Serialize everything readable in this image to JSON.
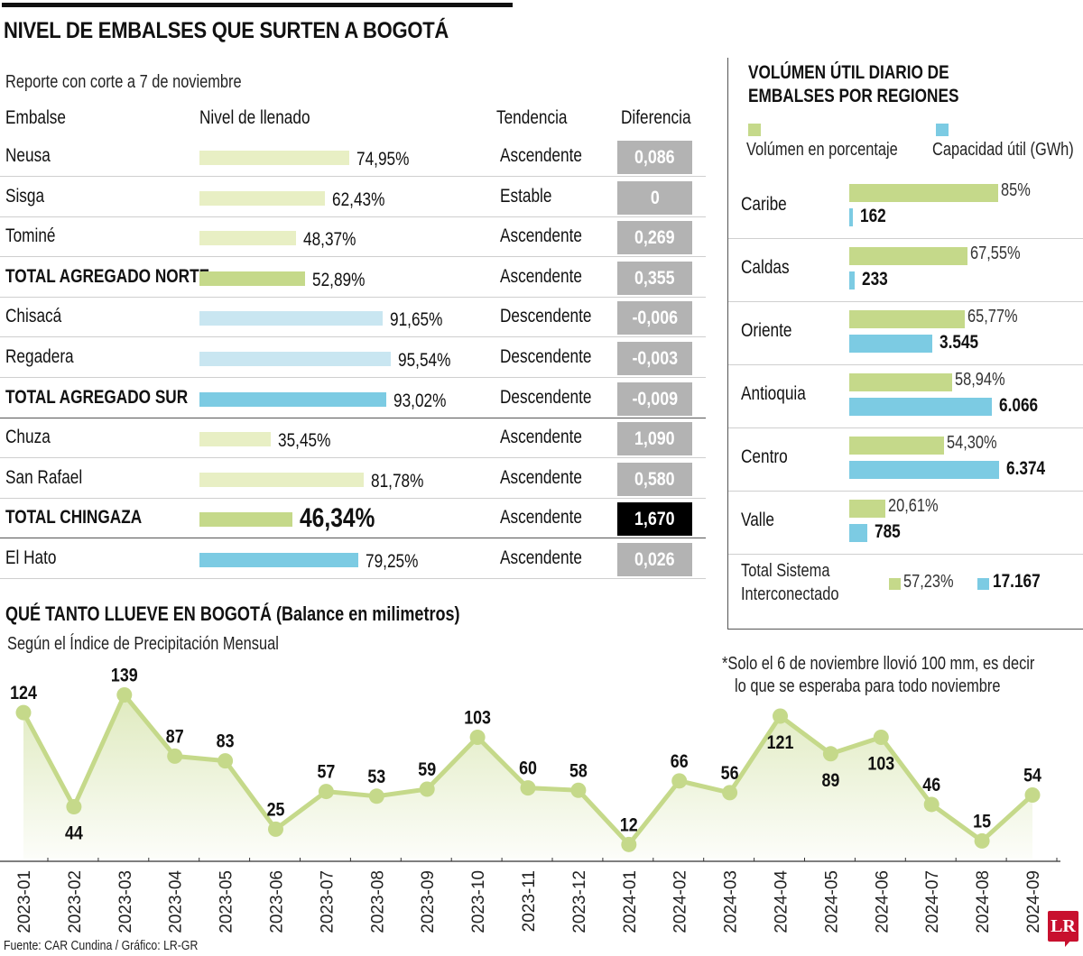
{
  "title": "NIVEL DE EMBALSES QUE SURTEN A BOGOTÁ",
  "report_note": "Reporte con corte a 7 de noviembre",
  "table": {
    "headers": {
      "embalse": "Embalse",
      "nivel": "Nivel de llenado",
      "tendencia": "Tendencia",
      "diferencia": "Diferencia"
    },
    "rows": [
      {
        "name": "Neusa",
        "level": 74.95,
        "level_label": "74,95%",
        "trend": "Ascendente",
        "diff": "0,086",
        "bold": false,
        "color": "#e8efc4",
        "highlight": false
      },
      {
        "name": "Sisga",
        "level": 62.43,
        "level_label": "62,43%",
        "trend": "Estable",
        "diff": "0",
        "bold": false,
        "color": "#e8efc4",
        "highlight": false
      },
      {
        "name": "Tominé",
        "level": 48.37,
        "level_label": "48,37%",
        "trend": "Ascendente",
        "diff": "0,269",
        "bold": false,
        "color": "#e8efc4",
        "highlight": false
      },
      {
        "name": "TOTAL AGREGADO NORTE",
        "level": 52.89,
        "level_label": "52,89%",
        "trend": "Ascendente",
        "diff": "0,355",
        "bold": true,
        "color": "#c5d98a",
        "highlight": false
      },
      {
        "name": "Chisacá",
        "level": 91.65,
        "level_label": "91,65%",
        "trend": "Descendente",
        "diff": "-0,006",
        "bold": false,
        "color": "#c9e6f1",
        "highlight": false
      },
      {
        "name": "Regadera",
        "level": 95.54,
        "level_label": "95,54%",
        "trend": "Descendente",
        "diff": "-0,003",
        "bold": false,
        "color": "#c9e6f1",
        "highlight": false
      },
      {
        "name": "TOTAL AGREGADO SUR",
        "level": 93.02,
        "level_label": "93,02%",
        "trend": "Descendente",
        "diff": "-0,009",
        "bold": true,
        "color": "#7ccbe3",
        "highlight": false
      },
      {
        "name": "Chuza",
        "level": 35.45,
        "level_label": "35,45%",
        "trend": "Ascendente",
        "diff": "1,090",
        "bold": false,
        "color": "#e8efc4",
        "highlight": false
      },
      {
        "name": "San Rafael",
        "level": 81.78,
        "level_label": "81,78%",
        "trend": "Ascendente",
        "diff": "0,580",
        "bold": false,
        "color": "#e8efc4",
        "highlight": false
      },
      {
        "name": "TOTAL CHINGAZA",
        "level": 46.34,
        "level_label": "46,34%",
        "trend": "Ascendente",
        "diff": "1,670",
        "bold": true,
        "color": "#c5d98a",
        "highlight": true
      },
      {
        "name": "El Hato",
        "level": 79.25,
        "level_label": "79,25%",
        "trend": "Ascendente",
        "diff": "0,026",
        "bold": false,
        "color": "#7ccbe3",
        "highlight": false
      }
    ]
  },
  "regions": {
    "title_line1": "VOLÚMEN ÚTIL DIARIO DE",
    "title_line2": "EMBALSES POR REGIONES",
    "legend": {
      "pct_label": "Volúmen en porcentaje",
      "cap_label": "Capacidad útil (GWh)",
      "pct_color": "#c5d98a",
      "cap_color": "#7ccbe3"
    },
    "items": [
      {
        "name": "Caribe",
        "pct": 85,
        "pct_label": "85%",
        "cap": 162,
        "cap_label": "162"
      },
      {
        "name": "Caldas",
        "pct": 67.55,
        "pct_label": "67,55%",
        "cap": 233,
        "cap_label": "233"
      },
      {
        "name": "Oriente",
        "pct": 65.77,
        "pct_label": "65,77%",
        "cap": 3545,
        "cap_label": "3.545"
      },
      {
        "name": "Antioquia",
        "pct": 58.94,
        "pct_label": "58,94%",
        "cap": 6066,
        "cap_label": "6.066"
      },
      {
        "name": "Centro",
        "pct": 54.3,
        "pct_label": "54,30%",
        "cap": 6374,
        "cap_label": "6.374"
      },
      {
        "name": "Valle",
        "pct": 20.61,
        "pct_label": "20,61%",
        "cap": 785,
        "cap_label": "785"
      }
    ],
    "total": {
      "name_line1": "Total Sistema",
      "name_line2": "Interconectado",
      "pct_label": "57,23%",
      "cap_label": "17.167"
    }
  },
  "rain": {
    "title": "QUÉ TANTO LLUEVE EN BOGOTÁ (Balance en milimetros)",
    "subtitle": "Según el Índice de Precipitación Mensual",
    "note_line1": "*Solo el 6 de noviembre llovió 100 mm, es decir",
    "note_line2": "lo que se esperaba para todo noviembre"
  },
  "chart_data": {
    "type": "area",
    "title": "QUÉ TANTO LLUEVE EN BOGOTÁ (Balance en milimetros)",
    "subtitle": "Según el Índice de Precipitación Mensual",
    "xlabel": "",
    "ylabel": "",
    "grid": false,
    "categories": [
      "2023-01",
      "2023-02",
      "2023-03",
      "2023-04",
      "2023-05",
      "2023-06",
      "2023-07",
      "2023-08",
      "2023-09",
      "2023-10",
      "2023-11",
      "2023-12",
      "2024-01",
      "2024-02",
      "2024-03",
      "2024-04",
      "2024-05",
      "2024-06",
      "2024-07",
      "2024-08",
      "2024-09"
    ],
    "values": [
      124,
      44,
      139,
      87,
      83,
      25,
      57,
      53,
      59,
      103,
      60,
      58,
      12,
      66,
      56,
      121,
      89,
      103,
      46,
      15,
      54
    ],
    "label_position": [
      "above",
      "below",
      "above",
      "above",
      "above",
      "above",
      "above",
      "above",
      "above",
      "above",
      "above",
      "above",
      "above",
      "above",
      "above",
      "below",
      "below",
      "below",
      "above",
      "above",
      "above"
    ],
    "ylim": [
      0,
      150
    ],
    "line_color": "#c5d98a"
  },
  "footer": {
    "source": "Fuente: CAR Cundina / Gráfico: LR-GR",
    "logo": "LR"
  }
}
